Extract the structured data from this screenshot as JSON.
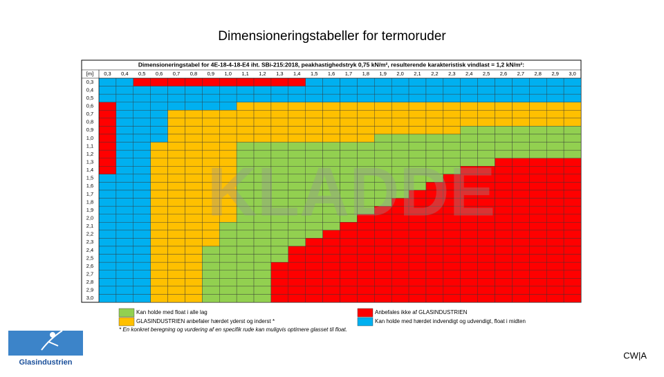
{
  "title": "Dimensioneringstabeller for termoruder",
  "table": {
    "header": "Dimensioneringstabel for 4E-18-4-18-E4 iht. SBi-215:2018, peakhastighedstryk 0,75 kN/m², resulterende karakteristisk vindlast = 1,2 kN/m²:",
    "corner": "[m]",
    "columns": [
      "0,3",
      "0,4",
      "0,5",
      "0,6",
      "0,7",
      "0,8",
      "0,9",
      "1,0",
      "1,1",
      "1,2",
      "1,3",
      "1,4",
      "1,5",
      "1,6",
      "1,7",
      "1,8",
      "1,9",
      "2,0",
      "2,1",
      "2,2",
      "2,3",
      "2,4",
      "2,5",
      "2,6",
      "2,7",
      "2,8",
      "2,9",
      "3,0"
    ],
    "rows": [
      {
        "label": "0,3",
        "cells": [
          3,
          3,
          2,
          2,
          2,
          2,
          2,
          2,
          2,
          2,
          2,
          2,
          3,
          3,
          3,
          3,
          3,
          3,
          3,
          3,
          3,
          3,
          3,
          3,
          3,
          3,
          3,
          3
        ]
      },
      {
        "label": "0,4",
        "cells": [
          3,
          3,
          3,
          3,
          3,
          3,
          3,
          3,
          3,
          3,
          3,
          3,
          3,
          3,
          3,
          3,
          3,
          3,
          3,
          3,
          3,
          3,
          3,
          3,
          3,
          3,
          3,
          3
        ]
      },
      {
        "label": "0,5",
        "cells": [
          3,
          3,
          3,
          3,
          3,
          3,
          3,
          3,
          3,
          3,
          3,
          3,
          3,
          3,
          3,
          3,
          3,
          3,
          3,
          3,
          3,
          3,
          3,
          3,
          3,
          3,
          3,
          3
        ]
      },
      {
        "label": "0,6",
        "cells": [
          2,
          3,
          3,
          3,
          3,
          3,
          3,
          3,
          1,
          1,
          1,
          1,
          1,
          1,
          1,
          1,
          1,
          1,
          1,
          1,
          1,
          1,
          1,
          1,
          1,
          1,
          1,
          1
        ]
      },
      {
        "label": "0,7",
        "cells": [
          2,
          3,
          3,
          3,
          1,
          1,
          1,
          1,
          1,
          1,
          1,
          1,
          1,
          1,
          1,
          1,
          1,
          1,
          1,
          1,
          1,
          1,
          1,
          1,
          1,
          1,
          1,
          1
        ]
      },
      {
        "label": "0,8",
        "cells": [
          2,
          3,
          3,
          3,
          1,
          1,
          1,
          1,
          1,
          1,
          1,
          1,
          1,
          1,
          1,
          1,
          1,
          1,
          1,
          1,
          1,
          1,
          1,
          1,
          1,
          1,
          1,
          1
        ]
      },
      {
        "label": "0,9",
        "cells": [
          2,
          3,
          3,
          3,
          1,
          1,
          1,
          1,
          1,
          1,
          1,
          1,
          1,
          1,
          1,
          1,
          1,
          1,
          1,
          1,
          1,
          0,
          0,
          0,
          0,
          0,
          0,
          0
        ]
      },
      {
        "label": "1,0",
        "cells": [
          2,
          3,
          3,
          3,
          1,
          1,
          1,
          1,
          1,
          1,
          1,
          1,
          1,
          1,
          1,
          1,
          0,
          0,
          0,
          0,
          0,
          0,
          0,
          0,
          0,
          0,
          0,
          0
        ]
      },
      {
        "label": "1,1",
        "cells": [
          2,
          3,
          3,
          1,
          1,
          1,
          1,
          1,
          0,
          0,
          0,
          0,
          0,
          0,
          0,
          0,
          0,
          0,
          0,
          0,
          0,
          0,
          0,
          0,
          0,
          0,
          0,
          0
        ]
      },
      {
        "label": "1,2",
        "cells": [
          2,
          3,
          3,
          1,
          1,
          1,
          1,
          1,
          0,
          0,
          0,
          0,
          0,
          0,
          0,
          0,
          0,
          0,
          0,
          0,
          0,
          0,
          0,
          0,
          0,
          0,
          0,
          0
        ]
      },
      {
        "label": "1,3",
        "cells": [
          2,
          3,
          3,
          1,
          1,
          1,
          1,
          1,
          0,
          0,
          0,
          0,
          0,
          0,
          0,
          0,
          0,
          0,
          0,
          0,
          0,
          0,
          0,
          2,
          2,
          2,
          2,
          2
        ]
      },
      {
        "label": "1,4",
        "cells": [
          2,
          3,
          3,
          1,
          1,
          1,
          1,
          1,
          0,
          0,
          0,
          0,
          0,
          0,
          0,
          0,
          0,
          0,
          0,
          0,
          0,
          2,
          2,
          2,
          2,
          2,
          2,
          2
        ]
      },
      {
        "label": "1,5",
        "cells": [
          3,
          3,
          3,
          1,
          1,
          1,
          1,
          1,
          0,
          0,
          0,
          0,
          0,
          0,
          0,
          0,
          0,
          0,
          0,
          0,
          2,
          2,
          2,
          2,
          2,
          2,
          2,
          2
        ]
      },
      {
        "label": "1,6",
        "cells": [
          3,
          3,
          3,
          1,
          1,
          1,
          1,
          1,
          0,
          0,
          0,
          0,
          0,
          0,
          0,
          0,
          0,
          0,
          0,
          2,
          2,
          2,
          2,
          2,
          2,
          2,
          2,
          2
        ]
      },
      {
        "label": "1,7",
        "cells": [
          3,
          3,
          3,
          1,
          1,
          1,
          1,
          1,
          0,
          0,
          0,
          0,
          0,
          0,
          0,
          0,
          0,
          0,
          2,
          2,
          2,
          2,
          2,
          2,
          2,
          2,
          2,
          2
        ]
      },
      {
        "label": "1,8",
        "cells": [
          3,
          3,
          3,
          1,
          1,
          1,
          1,
          1,
          0,
          0,
          0,
          0,
          0,
          0,
          0,
          0,
          0,
          2,
          2,
          2,
          2,
          2,
          2,
          2,
          2,
          2,
          2,
          2
        ]
      },
      {
        "label": "1,9",
        "cells": [
          3,
          3,
          3,
          1,
          1,
          1,
          1,
          1,
          0,
          0,
          0,
          0,
          0,
          0,
          0,
          0,
          2,
          2,
          2,
          2,
          2,
          2,
          2,
          2,
          2,
          2,
          2,
          2
        ]
      },
      {
        "label": "2,0",
        "cells": [
          3,
          3,
          3,
          1,
          1,
          1,
          1,
          1,
          0,
          0,
          0,
          0,
          0,
          0,
          0,
          2,
          2,
          2,
          2,
          2,
          2,
          2,
          2,
          2,
          2,
          2,
          2,
          2
        ]
      },
      {
        "label": "2,1",
        "cells": [
          3,
          3,
          3,
          1,
          1,
          1,
          1,
          0,
          0,
          0,
          0,
          0,
          0,
          0,
          2,
          2,
          2,
          2,
          2,
          2,
          2,
          2,
          2,
          2,
          2,
          2,
          2,
          2
        ]
      },
      {
        "label": "2,2",
        "cells": [
          3,
          3,
          3,
          1,
          1,
          1,
          1,
          0,
          0,
          0,
          0,
          0,
          0,
          2,
          2,
          2,
          2,
          2,
          2,
          2,
          2,
          2,
          2,
          2,
          2,
          2,
          2,
          2
        ]
      },
      {
        "label": "2,3",
        "cells": [
          3,
          3,
          3,
          1,
          1,
          1,
          1,
          0,
          0,
          0,
          0,
          0,
          2,
          2,
          2,
          2,
          2,
          2,
          2,
          2,
          2,
          2,
          2,
          2,
          2,
          2,
          2,
          2
        ]
      },
      {
        "label": "2,4",
        "cells": [
          3,
          3,
          3,
          1,
          1,
          1,
          0,
          0,
          0,
          0,
          0,
          2,
          2,
          2,
          2,
          2,
          2,
          2,
          2,
          2,
          2,
          2,
          2,
          2,
          2,
          2,
          2,
          2
        ]
      },
      {
        "label": "2,5",
        "cells": [
          3,
          3,
          3,
          1,
          1,
          1,
          0,
          0,
          0,
          0,
          0,
          2,
          2,
          2,
          2,
          2,
          2,
          2,
          2,
          2,
          2,
          2,
          2,
          2,
          2,
          2,
          2,
          2
        ]
      },
      {
        "label": "2,6",
        "cells": [
          3,
          3,
          3,
          1,
          1,
          1,
          0,
          0,
          0,
          0,
          2,
          2,
          2,
          2,
          2,
          2,
          2,
          2,
          2,
          2,
          2,
          2,
          2,
          2,
          2,
          2,
          2,
          2
        ]
      },
      {
        "label": "2,7",
        "cells": [
          3,
          3,
          3,
          1,
          1,
          1,
          0,
          0,
          0,
          0,
          2,
          2,
          2,
          2,
          2,
          2,
          2,
          2,
          2,
          2,
          2,
          2,
          2,
          2,
          2,
          2,
          2,
          2
        ]
      },
      {
        "label": "2,8",
        "cells": [
          3,
          3,
          3,
          1,
          1,
          1,
          0,
          0,
          0,
          0,
          2,
          2,
          2,
          2,
          2,
          2,
          2,
          2,
          2,
          2,
          2,
          2,
          2,
          2,
          2,
          2,
          2,
          2
        ]
      },
      {
        "label": "2,9",
        "cells": [
          3,
          3,
          3,
          1,
          1,
          1,
          0,
          0,
          0,
          0,
          2,
          2,
          2,
          2,
          2,
          2,
          2,
          2,
          2,
          2,
          2,
          2,
          2,
          2,
          2,
          2,
          2,
          2
        ]
      },
      {
        "label": "3,0",
        "cells": [
          3,
          3,
          3,
          1,
          1,
          1,
          0,
          0,
          0,
          0,
          2,
          2,
          2,
          2,
          2,
          2,
          2,
          2,
          2,
          2,
          2,
          2,
          2,
          2,
          2,
          2,
          2,
          2
        ]
      }
    ]
  },
  "watermark": "KLADDE",
  "legend": [
    {
      "label": "Kan holde med float i alle lag",
      "color": "#92d050"
    },
    {
      "label": "GLASINDUSTRIEN anbefaler hærdet yderst og inderst *",
      "color": "#ffc000"
    },
    {
      "label": "Anbefales ikke af GLASINDUSTRIEN",
      "color": "#ff0000"
    },
    {
      "label": "Kan holde med hærdet indvendigt og udvendigt, float i midten",
      "color": "#00b0f0"
    }
  ],
  "footnote": "* En konkret beregning og vurdering af en specifik rude kan muligvis optimere glasset til float.",
  "logo": "Glasindustrien",
  "corner_tag": "CW|A"
}
